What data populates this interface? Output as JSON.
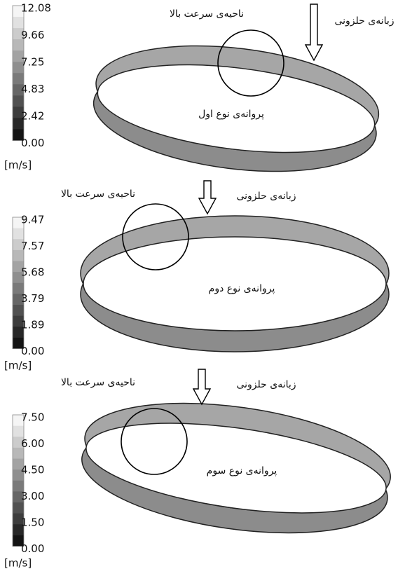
{
  "panels": [
    {
      "legend": {
        "ticks": [
          "12.08",
          "9.66",
          "7.25",
          "4.83",
          "2.42",
          "0.00"
        ],
        "unit": "[m/s]"
      },
      "high_speed": "ناحیه‌ی سرعت بالا",
      "tongue": "زبانه‌ی حلزونی",
      "impeller": "پروانه‌ی نوع اول"
    },
    {
      "legend": {
        "ticks": [
          "9.47",
          "7.57",
          "5.68",
          "3.79",
          "1.89",
          "0.00"
        ],
        "unit": "[m/s]"
      },
      "high_speed": "ناحیه‌ی سرعت بالا",
      "tongue": "زبانه‌ی حلزونی",
      "impeller": "پروانه‌ی نوع دوم"
    },
    {
      "legend": {
        "ticks": [
          "7.50",
          "6.00",
          "4.50",
          "3.00",
          "1.50",
          "0.00"
        ],
        "unit": "[m/s]"
      },
      "high_speed": "ناحیه‌ی سرعت بالا",
      "tongue": "زبانه‌ی حلزونی",
      "impeller": "پروانه‌ی نوع سوم"
    }
  ]
}
